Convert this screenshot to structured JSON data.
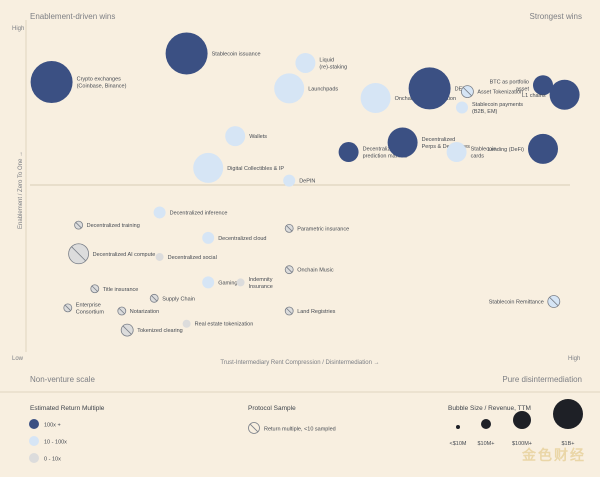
{
  "quadrants": {
    "top_left": "Enablement-driven wins",
    "top_right": "Strongest wins",
    "bottom_left": "Non-venture scale",
    "bottom_right": "Pure disintermediation"
  },
  "colors": {
    "high": "#3b5083",
    "mid": "#d6e5f5",
    "low": "#dcdcdc",
    "divider": "#d9cdb6",
    "sample_stroke": "#7a7f88"
  },
  "chart_data": {
    "type": "scatter",
    "title": "",
    "xlabel": "Trust-Intermediary Rent Compression / Disintermediation",
    "ylabel": "Enablement / Zero To One",
    "x_tick_labels": [
      "Low",
      "High"
    ],
    "y_tick_labels": [
      "Low",
      "High"
    ],
    "xlim": [
      0,
      100
    ],
    "ylim": [
      0,
      100
    ],
    "grid": false,
    "size_legend": {
      "title": "Bubble Size / Revenue, TTM",
      "items": [
        "<$10M",
        "$10M+",
        "$100M+",
        "$1B+"
      ]
    },
    "color_legend": {
      "title": "Estimated Return Multiple",
      "items": [
        {
          "label": "100x +",
          "tier": "high"
        },
        {
          "label": "10 - 100x",
          "tier": "mid"
        },
        {
          "label": "0 - 10x",
          "tier": "low"
        }
      ]
    },
    "protocol_legend": {
      "title": "Protocol Sample",
      "items": [
        {
          "label": "Return multiple, <10 sampled"
        }
      ]
    },
    "points": [
      {
        "name": "Stablecoin issuance",
        "x": 29,
        "y": 92,
        "size": 4,
        "tier": "high",
        "sampled": false
      },
      {
        "name": "Crypto exchanges\n(Coinbase, Binance)",
        "x": 4,
        "y": 83,
        "size": 4,
        "tier": "high",
        "sampled": false
      },
      {
        "name": "Liquid\n(re)-staking",
        "x": 51,
        "y": 89,
        "size": 2,
        "tier": "mid",
        "sampled": false
      },
      {
        "name": "Launchpads",
        "x": 48,
        "y": 81,
        "size": 3,
        "tier": "mid",
        "sampled": false
      },
      {
        "name": "Onchain Yield & Curation",
        "x": 64,
        "y": 78,
        "size": 3,
        "tier": "mid",
        "sampled": false
      },
      {
        "name": "DEX",
        "x": 74,
        "y": 81,
        "size": 4,
        "tier": "high",
        "sampled": false
      },
      {
        "name": "Asset Tokenization",
        "x": 81,
        "y": 80,
        "size": 1,
        "tier": "mid",
        "sampled": true
      },
      {
        "name": "BTC as portfolio\nasset",
        "x": 95,
        "y": 82,
        "size": 2,
        "tier": "high",
        "sampled": false
      },
      {
        "name": "L1 chains",
        "x": 99,
        "y": 79,
        "size": 3,
        "tier": "high",
        "sampled": false
      },
      {
        "name": "Stablecoin payments\n(B2B, EM)",
        "x": 80,
        "y": 75,
        "size": 1,
        "tier": "mid",
        "sampled": false
      },
      {
        "name": "Wallets",
        "x": 38,
        "y": 66,
        "size": 2,
        "tier": "mid",
        "sampled": false
      },
      {
        "name": "Decentralized\nprediction markets",
        "x": 59,
        "y": 61,
        "size": 2,
        "tier": "high",
        "sampled": false
      },
      {
        "name": "Decentralized\nPerps & Derivatives",
        "x": 69,
        "y": 64,
        "size": 3,
        "tier": "high",
        "sampled": false
      },
      {
        "name": "Stablecoin\ncards",
        "x": 79,
        "y": 61,
        "size": 2,
        "tier": "mid",
        "sampled": false
      },
      {
        "name": "Lending (DeFi)",
        "x": 95,
        "y": 62,
        "size": 3,
        "tier": "high",
        "sampled": false
      },
      {
        "name": "Digital Collectibles & IP",
        "x": 33,
        "y": 56,
        "size": 3,
        "tier": "mid",
        "sampled": false
      },
      {
        "name": "DePIN",
        "x": 48,
        "y": 52,
        "size": 1,
        "tier": "mid",
        "sampled": false
      },
      {
        "name": "Decentralized inference",
        "x": 24,
        "y": 42,
        "size": 1,
        "tier": "mid",
        "sampled": false
      },
      {
        "name": "Decentralized training",
        "x": 9,
        "y": 38,
        "size": 0,
        "tier": "low",
        "sampled": true
      },
      {
        "name": "Parametric insurance",
        "x": 48,
        "y": 37,
        "size": 0,
        "tier": "low",
        "sampled": true
      },
      {
        "name": "Decentralized cloud",
        "x": 33,
        "y": 34,
        "size": 1,
        "tier": "mid",
        "sampled": false
      },
      {
        "name": "Decentralized AI compute",
        "x": 9,
        "y": 29,
        "size": 2,
        "tier": "low",
        "sampled": true
      },
      {
        "name": "Decentralized social",
        "x": 24,
        "y": 28,
        "size": 0,
        "tier": "low",
        "sampled": false
      },
      {
        "name": "Onchain Music",
        "x": 48,
        "y": 24,
        "size": 0,
        "tier": "low",
        "sampled": true
      },
      {
        "name": "Gaming",
        "x": 33,
        "y": 20,
        "size": 1,
        "tier": "mid",
        "sampled": false
      },
      {
        "name": "Indemnity\nInsurance",
        "x": 39,
        "y": 20,
        "size": 0,
        "tier": "low",
        "sampled": false
      },
      {
        "name": "Title insurance",
        "x": 12,
        "y": 18,
        "size": 0,
        "tier": "low",
        "sampled": true
      },
      {
        "name": "Supply Chain",
        "x": 23,
        "y": 15,
        "size": 0,
        "tier": "low",
        "sampled": true
      },
      {
        "name": "Enterprise\nConsortium",
        "x": 7,
        "y": 12,
        "size": 0,
        "tier": "low",
        "sampled": true
      },
      {
        "name": "Notarization",
        "x": 17,
        "y": 11,
        "size": 0,
        "tier": "low",
        "sampled": true
      },
      {
        "name": "Land Registries",
        "x": 48,
        "y": 11,
        "size": 0,
        "tier": "low",
        "sampled": true
      },
      {
        "name": "Stablecoin Remittance",
        "x": 97,
        "y": 14,
        "size": 1,
        "tier": "mid",
        "sampled": true
      },
      {
        "name": "Real estate tokenization",
        "x": 29,
        "y": 7,
        "size": 0,
        "tier": "low",
        "sampled": false
      },
      {
        "name": "Tokenized clearing",
        "x": 18,
        "y": 5,
        "size": 1,
        "tier": "low",
        "sampled": true
      }
    ]
  },
  "watermark": "金色财经"
}
